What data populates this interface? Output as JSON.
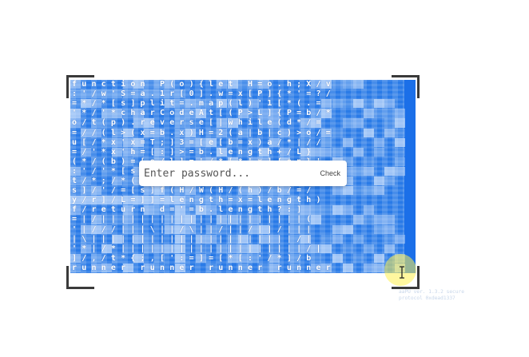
{
  "code_rows": [
    "function P(o){let H=o.h;X/v",
    ":'/w'S=a.1r[0].w=x[P]{*'=?/",
    "=*/*[s]plit=.map(l)'1[*(.=",
    "'*/'*charCodeAt[(P>L]{P=b/*",
    "o/t(p).reverse[|while(d*/=",
    "=//(l>(x=b.x)H=2(a|b|c)>o/=",
    "u[/*x'x=T;]3=[e[b=x)a/*|//",
    "=/'*x'h=[:]>=b.length+/L}",
    "(*/(b)=[o/l]='/*[*'x]{on}'",
    ":'/'*[s/(f)w=[n=*x[h]{e]#",
    "t/*;/*({=}=[x[b[H]/o]/a/x",
    "s]/'/=[s]f(H/W(H/(h)/b/=/",
    "y/r]/L=]]=length=x=length)",
    "f/return d='=b.length?:]",
    "=|/|||||||||||||||||||||(",
    "'|///|||\\||/\\||/||/||/|||",
    "|\\|||||||||||||||||||||/|",
    "'*|/*|||||||||||||||||||/|",
    "]/,/t*{;,[':=]=[*[:'/*]/b",
    "runner runner runner runner"
  ],
  "password": {
    "placeholder": "Enter password...",
    "button_label": "Check"
  },
  "footer": {
    "version_line": "aaPU ver. 1.3.2 secure",
    "protocol_line": "protocol 0xdead1337"
  },
  "colors": {
    "canvas": "#1f74e6",
    "bracket": "#3a3a3a",
    "highlight": "#fff050"
  }
}
